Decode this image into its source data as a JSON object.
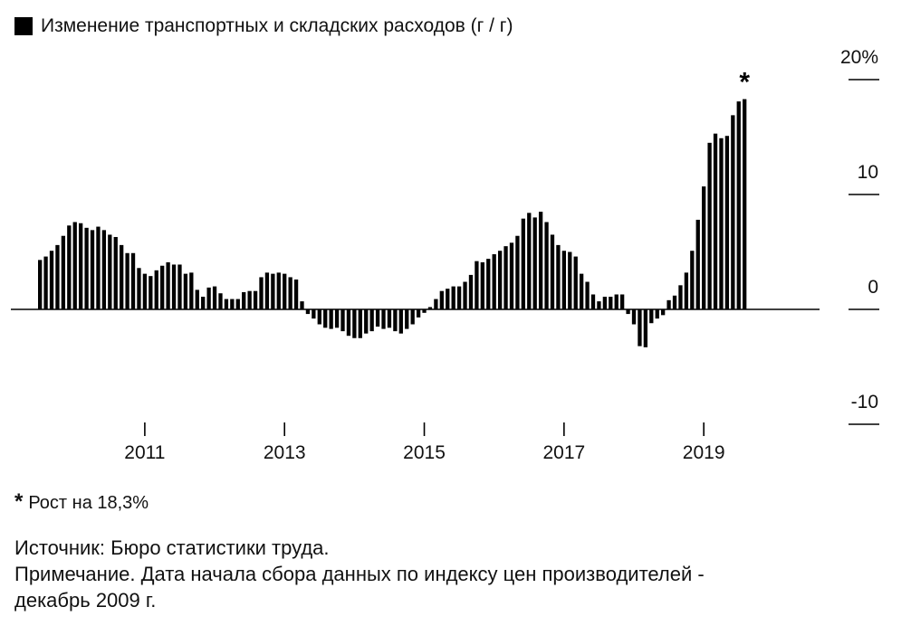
{
  "legend": {
    "label": "Изменение транспортных и складских расходов (г / г)",
    "color": "#000000"
  },
  "chart_data": {
    "type": "bar",
    "title": "",
    "xlabel": "",
    "ylabel": "",
    "ylim": [
      -10,
      20
    ],
    "y_ticks": [
      "20%",
      "10",
      "0",
      "-10"
    ],
    "y_tick_values": [
      20,
      10,
      0,
      -10
    ],
    "x_ticks": [
      "2011",
      "2013",
      "2015",
      "2017",
      "2019"
    ],
    "start": "2010-01",
    "frequency": "monthly",
    "bar_color": "#000000",
    "grid": false,
    "series": [
      {
        "values": [
          4.3,
          4.6,
          5.1,
          5.6,
          6.4,
          7.3,
          7.6,
          7.5,
          7.1,
          6.9,
          7.2,
          6.9,
          6.5,
          6.3,
          5.6,
          4.9,
          4.9,
          3.6,
          3.1,
          2.9,
          3.4,
          3.8,
          4.1,
          3.9,
          3.9,
          3.1,
          3.2,
          1.7,
          1.1,
          1.9,
          2.0,
          1.4,
          0.9,
          0.9,
          0.9,
          1.5,
          1.6,
          1.6,
          2.8,
          3.2,
          3.1,
          3.2,
          3.1,
          2.8,
          2.6,
          0.7,
          -0.4,
          -0.8,
          -1.3,
          -1.6,
          -1.7,
          -1.6,
          -1.9,
          -2.3,
          -2.5,
          -2.5,
          -2.1,
          -1.9,
          -1.5,
          -1.7,
          -1.6,
          -1.9,
          -2.1,
          -1.7,
          -1.3,
          -0.7,
          -0.3,
          0.2,
          0.9,
          1.6,
          1.8,
          2.0,
          2.0,
          2.4,
          3.0,
          4.2,
          4.1,
          4.4,
          4.8,
          5.1,
          5.5,
          5.8,
          6.4,
          7.9,
          8.4,
          8.0,
          8.5,
          7.6,
          6.5,
          5.6,
          5.1,
          5.0,
          4.6,
          3.1,
          2.4,
          1.3,
          0.7,
          1.1,
          1.1,
          1.3,
          1.3,
          -0.4,
          -1.3,
          -3.2,
          -3.3,
          -1.2,
          -0.8,
          -0.5,
          0.8,
          1.2,
          2.1,
          3.2,
          5.1,
          7.8,
          10.7,
          14.5,
          15.3,
          14.9,
          15.1,
          16.9,
          18.1,
          18.3
        ]
      }
    ],
    "annotation": {
      "marker": "*",
      "text": "Рост на 18,3%"
    }
  },
  "notes": {
    "source": "Источник: Бюро статистики труда.",
    "note_line1": "Примечание. Дата начала сбора данных по индексу цен производителей -",
    "note_line2": "декабрь 2009 г."
  }
}
